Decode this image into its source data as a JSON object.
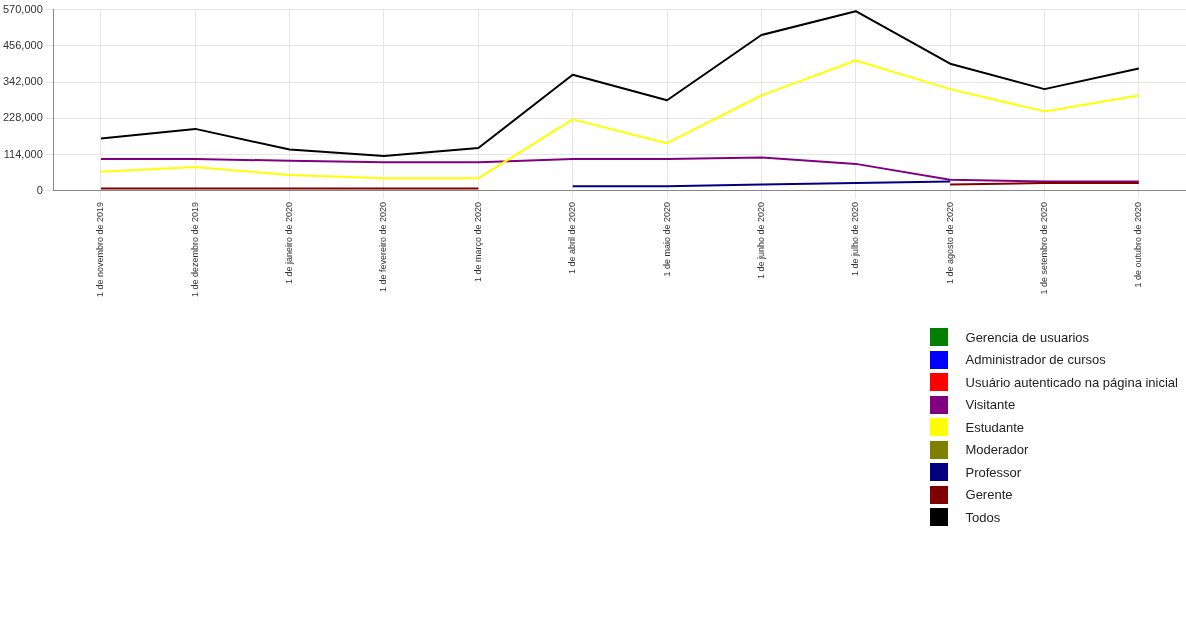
{
  "chart_data": {
    "type": "line",
    "categories": [
      "1 de novembro de 2019",
      "1 de dezembro de 2019",
      "1 de janeiro de 2020",
      "1 de fevereiro de 2020",
      "1 de março de 2020",
      "1 de abril de 2020",
      "1 de maio de 2020",
      "1 de junho de 2020",
      "1 de julho de 2020",
      "1 de agosto de 2020",
      "1 de setembro de 2020",
      "1 de outubro de 2020"
    ],
    "series": [
      {
        "name": "Gerencia de usuarios",
        "color": "#008000",
        "values": [
          null,
          null,
          null,
          null,
          null,
          null,
          null,
          null,
          null,
          null,
          null,
          null
        ]
      },
      {
        "name": "Administrador de cursos",
        "color": "#0000ff",
        "values": [
          null,
          null,
          null,
          null,
          null,
          null,
          null,
          null,
          null,
          null,
          null,
          null
        ]
      },
      {
        "name": "Usuário autenticado na página inicial",
        "color": "#ff0000",
        "values": [
          null,
          null,
          null,
          null,
          null,
          null,
          null,
          null,
          null,
          null,
          null,
          null
        ]
      },
      {
        "name": "Visitante",
        "color": "#800080",
        "values": [
          100000,
          100000,
          95000,
          90000,
          90000,
          100000,
          100000,
          105000,
          85000,
          35000,
          30000,
          30000
        ]
      },
      {
        "name": "Estudante",
        "color": "#ffff00",
        "values": [
          60000,
          75000,
          50000,
          40000,
          40000,
          225000,
          150000,
          300000,
          410000,
          320000,
          250000,
          300000
        ]
      },
      {
        "name": "Moderador",
        "color": "#808000",
        "values": [
          null,
          null,
          null,
          null,
          null,
          null,
          null,
          null,
          null,
          null,
          null,
          null
        ]
      },
      {
        "name": "Professor",
        "color": "#000080",
        "values": [
          null,
          null,
          null,
          null,
          null,
          15000,
          15000,
          20000,
          25000,
          30000,
          null,
          null
        ]
      },
      {
        "name": "Gerente",
        "color": "#800000",
        "values": [
          8000,
          8000,
          8000,
          8000,
          8000,
          null,
          null,
          null,
          null,
          20000,
          25000,
          25000
        ]
      },
      {
        "name": "Todos",
        "color": "#000000",
        "values": [
          165000,
          195000,
          130000,
          110000,
          135000,
          365000,
          285000,
          490000,
          565000,
          400000,
          320000,
          385000
        ]
      }
    ],
    "ylim": [
      0,
      570000
    ],
    "yticks": [
      {
        "value": 0,
        "label": "0"
      },
      {
        "value": 114000,
        "label": "114,000"
      },
      {
        "value": 228000,
        "label": "228,000"
      },
      {
        "value": 342000,
        "label": "342,000"
      },
      {
        "value": 456000,
        "label": "456,000"
      },
      {
        "value": 570000,
        "label": "570,000"
      }
    ],
    "grid": true,
    "legend": "bottom right",
    "marker": "none",
    "line_style": "solid"
  }
}
